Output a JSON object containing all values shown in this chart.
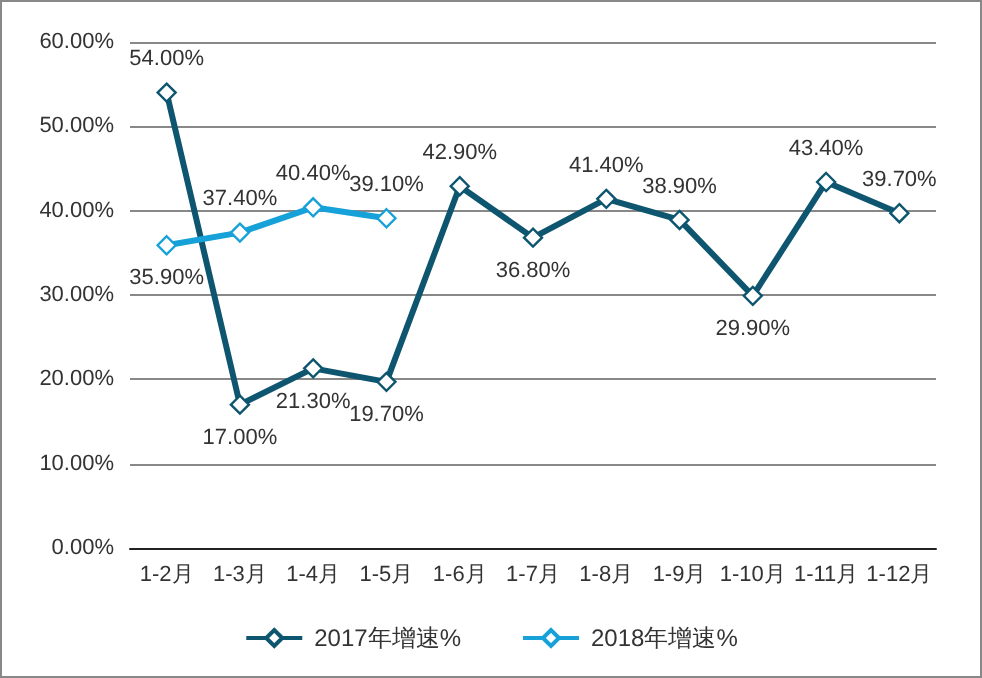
{
  "chart_data": {
    "type": "line",
    "categories": [
      "1-2月",
      "1-3月",
      "1-4月",
      "1-5月",
      "1-6月",
      "1-7月",
      "1-8月",
      "1-9月",
      "1-10月",
      "1-11月",
      "1-12月"
    ],
    "series": [
      {
        "name": "2017年增速%",
        "color": "#0e5570",
        "values": [
          54.0,
          17.0,
          21.3,
          19.7,
          42.9,
          36.8,
          41.4,
          38.9,
          29.9,
          43.4,
          39.7
        ],
        "value_labels": [
          "54.00%",
          "17.00%",
          "21.30%",
          "19.70%",
          "42.90%",
          "36.80%",
          "41.40%",
          "38.90%",
          "29.90%",
          "43.40%",
          "39.70%"
        ]
      },
      {
        "name": "2018年增速%",
        "color": "#16a2d8",
        "values": [
          35.9,
          37.4,
          40.4,
          39.1,
          null,
          null,
          null,
          null,
          null,
          null,
          null
        ],
        "value_labels": [
          "35.90%",
          "37.40%",
          "40.40%",
          "39.10%",
          null,
          null,
          null,
          null,
          null,
          null,
          null
        ]
      }
    ],
    "ylim": [
      0,
      60
    ],
    "yticks": [
      {
        "value": 0,
        "label": "0.00%"
      },
      {
        "value": 10,
        "label": "10.00%"
      },
      {
        "value": 20,
        "label": "20.00%"
      },
      {
        "value": 30,
        "label": "30.00%"
      },
      {
        "value": 40,
        "label": "40.00%"
      },
      {
        "value": 50,
        "label": "50.00%"
      },
      {
        "value": 60,
        "label": "60.00%"
      }
    ],
    "grid": "y",
    "legend": "bottom",
    "marker": "diamond",
    "line_style": "solid"
  }
}
